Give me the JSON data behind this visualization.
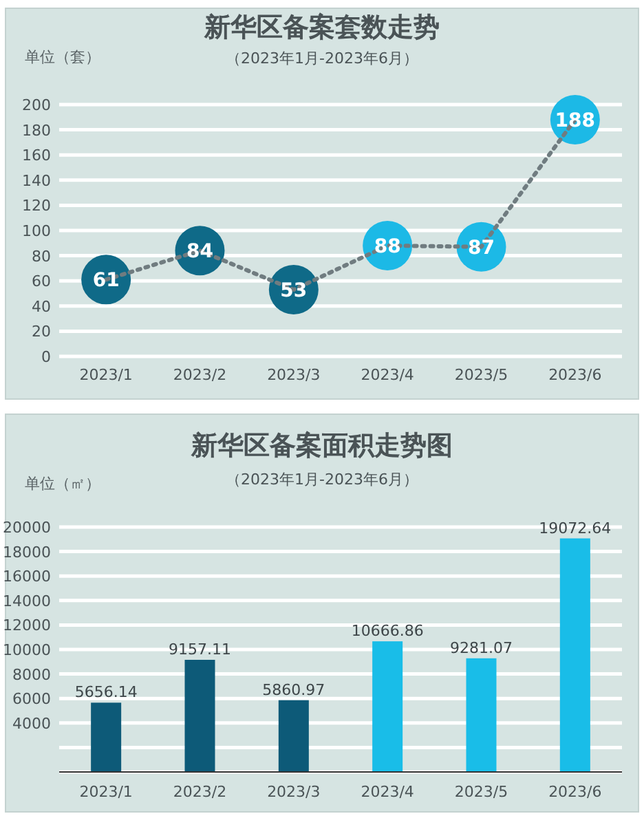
{
  "chart_data": [
    {
      "type": "line",
      "title": "新华区备案套数走势",
      "subtitle": "（2023年1月-2023年6月）",
      "ylabel": "单位（套）",
      "categories": [
        "2023/1",
        "2023/2",
        "2023/3",
        "2023/4",
        "2023/5",
        "2023/6"
      ],
      "values": [
        61,
        84,
        53,
        88,
        87,
        188
      ],
      "color": "#707c80",
      "colors": [
        "#0f6a88",
        "#0f6a88",
        "#0f6a88",
        "#1cb9e6",
        "#1cb9e6",
        "#1cb9e6"
      ],
      "ylim": [
        0,
        200
      ],
      "yticks": [
        0,
        20,
        40,
        60,
        80,
        100,
        120,
        140,
        160,
        180,
        200
      ],
      "grid": "y",
      "data_labels": true,
      "marker": "circle",
      "line_style": "dotted"
    },
    {
      "type": "bar",
      "title": "新华区备案面积走势图",
      "subtitle": "（2023年1月-2023年6月）",
      "ylabel": "单位（㎡）",
      "categories": [
        "2023/1",
        "2023/2",
        "2023/3",
        "2023/4",
        "2023/5",
        "2023/6"
      ],
      "values": [
        5656.14,
        9157.11,
        5860.97,
        10666.86,
        9281.07,
        19072.64
      ],
      "colors": [
        "#0d5a78",
        "#0d5a78",
        "#0d5a78",
        "#19bde8",
        "#19bde8",
        "#19bde8"
      ],
      "ylim": [
        0,
        20000
      ],
      "yticks": [
        {
          "value": 0,
          "label": null
        },
        {
          "value": 2000,
          "label": null
        },
        4000,
        6000,
        8000,
        10000,
        12000,
        14000,
        16000,
        18000,
        20000
      ],
      "grid": "y",
      "data_labels": true
    }
  ]
}
